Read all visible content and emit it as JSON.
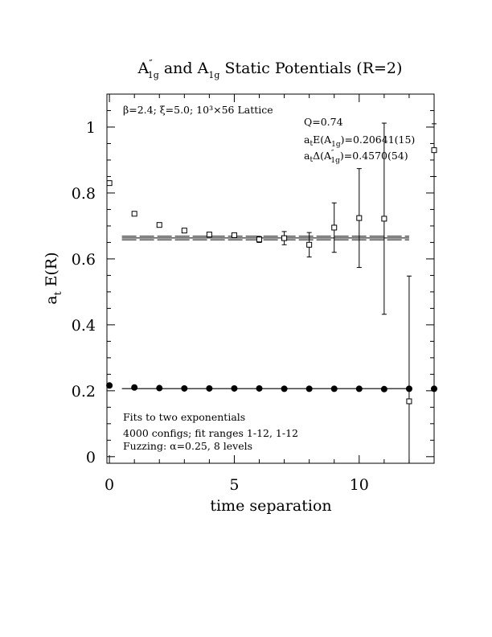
{
  "chart_data": {
    "type": "scatter",
    "title": {
      "part1_base": "A",
      "part1_sup": "″",
      "part1_sub": "1g",
      "and": " and ",
      "part2_base": "A",
      "part2_sub": "1g",
      "rest": " Static Potentials (R=2)"
    },
    "xlabel": "time separation",
    "ylabel_base": "a",
    "ylabel_sub": "t",
    "ylabel_rest": " E(R)",
    "xlim": [
      -0.1,
      13
    ],
    "ylim": [
      -0.02,
      1.1
    ],
    "x_ticks": [
      0,
      5,
      10
    ],
    "x_tick_labels": [
      "0",
      "5",
      "10"
    ],
    "y_ticks": [
      0,
      0.2,
      0.4,
      0.6,
      0.8,
      1
    ],
    "y_tick_labels": [
      "0",
      "0.2",
      "0.4",
      "0.6",
      "0.8",
      "1"
    ],
    "top_annotation": "β=2.4; ξ=5.0; 10³×56 Lattice",
    "fit_info": {
      "q": "Q=0.74",
      "e_prefix": "a",
      "e_prefix_sub": "t",
      "e_mid": "E(A",
      "e_mid_sub": "1g",
      "e_value": ")=0.20641(15)",
      "d_prefix": "a",
      "d_prefix_sub": "t",
      "d_mid": "Δ(A",
      "d_mid_sup": "″",
      "d_mid_sub": "1g",
      "d_value": ")=0.4570(54)"
    },
    "bottom_notes": [
      "Fits to two exponentials",
      "4000 configs; fit ranges 1-12, 1-12",
      "Fuzzing: α=0.25, 8 levels"
    ],
    "series": [
      {
        "marker": "filled-circle",
        "points": [
          {
            "x": 0,
            "y": 0.216,
            "err": 0.003
          },
          {
            "x": 1,
            "y": 0.21,
            "err": 0.002
          },
          {
            "x": 2,
            "y": 0.208,
            "err": 0.002
          },
          {
            "x": 3,
            "y": 0.207,
            "err": 0.002
          },
          {
            "x": 4,
            "y": 0.207,
            "err": 0.002
          },
          {
            "x": 5,
            "y": 0.207,
            "err": 0.002
          },
          {
            "x": 6,
            "y": 0.207,
            "err": 0.002
          },
          {
            "x": 7,
            "y": 0.206,
            "err": 0.002
          },
          {
            "x": 8,
            "y": 0.206,
            "err": 0.002
          },
          {
            "x": 9,
            "y": 0.206,
            "err": 0.003
          },
          {
            "x": 10,
            "y": 0.206,
            "err": 0.003
          },
          {
            "x": 11,
            "y": 0.205,
            "err": 0.003
          },
          {
            "x": 12,
            "y": 0.206,
            "err": 0.004
          },
          {
            "x": 13,
            "y": 0.206,
            "err": 0.005
          }
        ],
        "fit_line": {
          "x_start": 0.5,
          "x_end": 12,
          "y": 0.20641,
          "band": 0.0005
        }
      },
      {
        "marker": "open-square",
        "points": [
          {
            "x": 0,
            "y": 0.83,
            "err": 0.005
          },
          {
            "x": 1,
            "y": 0.737,
            "err": 0.004
          },
          {
            "x": 2,
            "y": 0.703,
            "err": 0.004
          },
          {
            "x": 3,
            "y": 0.686,
            "err": 0.005
          },
          {
            "x": 4,
            "y": 0.674,
            "err": 0.006
          },
          {
            "x": 5,
            "y": 0.672,
            "err": 0.007
          },
          {
            "x": 6,
            "y": 0.659,
            "err": 0.009
          },
          {
            "x": 7,
            "y": 0.663,
            "err": 0.02
          },
          {
            "x": 8,
            "y": 0.643,
            "err": 0.037
          },
          {
            "x": 9,
            "y": 0.695,
            "err": 0.075
          },
          {
            "x": 10,
            "y": 0.724,
            "err": 0.15
          },
          {
            "x": 11,
            "y": 0.722,
            "err": 0.29
          },
          {
            "x": 12,
            "y": 0.168,
            "err": 0.38
          },
          {
            "x": 13,
            "y": 0.93,
            "err": 0.08
          }
        ],
        "fit_line": {
          "x_start": 0.5,
          "x_end": 12,
          "y": 0.6634,
          "band": 0.0054
        }
      }
    ]
  }
}
